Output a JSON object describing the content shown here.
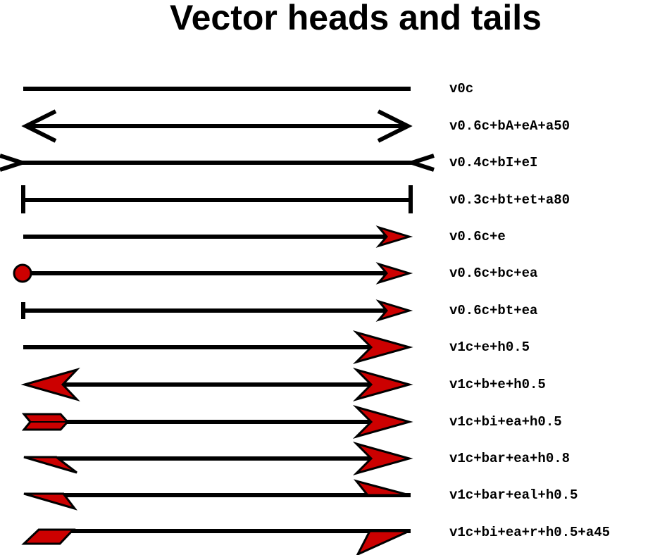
{
  "title": "Vector heads and tails",
  "colors": {
    "head_fill": "#cc0000",
    "line": "#000000"
  },
  "vectors": [
    {
      "label": "v0c"
    },
    {
      "label": "v0.6c+bA+eA+a50"
    },
    {
      "label": "v0.4c+bI+eI"
    },
    {
      "label": "v0.3c+bt+et+a80"
    },
    {
      "label": "v0.6c+e"
    },
    {
      "label": "v0.6c+bc+ea"
    },
    {
      "label": "v0.6c+bt+ea"
    },
    {
      "label": "v1c+e+h0.5"
    },
    {
      "label": "v1c+b+e+h0.5"
    },
    {
      "label": "v1c+bi+ea+h0.5"
    },
    {
      "label": "v1c+bar+ea+h0.8"
    },
    {
      "label": "v1c+bar+eal+h0.5"
    },
    {
      "label": "v1c+bi+ea+r+h0.5+a45"
    }
  ]
}
